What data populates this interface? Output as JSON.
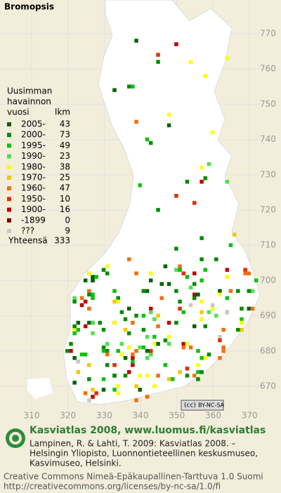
{
  "title": "Bromopsis",
  "legend": {
    "heading": [
      "Uusimman",
      "havainnon",
      "vuosi"
    ],
    "count_heading": "lkm",
    "entries": [
      {
        "label": "2005-",
        "count": 43,
        "color": "#006400"
      },
      {
        "label": "2000-",
        "count": 73,
        "color": "#008c00"
      },
      {
        "label": "1995-",
        "count": 49,
        "color": "#10c010"
      },
      {
        "label": "1990-",
        "count": 23,
        "color": "#50e050"
      },
      {
        "label": "1980-",
        "count": 38,
        "color": "#ffff00"
      },
      {
        "label": "1970-",
        "count": 25,
        "color": "#f0c800"
      },
      {
        "label": "1960-",
        "count": 47,
        "color": "#f07010"
      },
      {
        "label": "1950-",
        "count": 10,
        "color": "#e03000"
      },
      {
        "label": "1900-",
        "count": 16,
        "color": "#c00000"
      },
      {
        "label": "-1899",
        "count": 0,
        "color": "#780000"
      },
      {
        "label": "???",
        "count": 9,
        "color": "#c8c8c8"
      }
    ],
    "total_label": "Yhteensä",
    "total": 333
  },
  "y_labels": [
    770,
    760,
    750,
    740,
    730,
    720,
    710,
    700,
    690,
    680,
    670
  ],
  "x_labels": [
    310,
    320,
    330,
    340,
    350,
    360,
    370
  ],
  "license_badge": "BY-NC-SA",
  "footer": {
    "title": "Kasviatlas 2008, www.luomus.fi/kasviatlas",
    "citation": [
      "Lampinen, R. & Lahti, T. 2009: Kasviatlas 2008. –",
      "Helsingin Yliopisto, Luonnontieteellinen keskusmuseo,",
      "Kasvimuseo, Helsinki."
    ],
    "license": [
      "Creative Commons Nimeä-Epäkaupallinen-Tarttuva 1.0 Suomi",
      "http://creativecommons.org/licenses/by-nc-sa/1.0/fi"
    ]
  }
}
